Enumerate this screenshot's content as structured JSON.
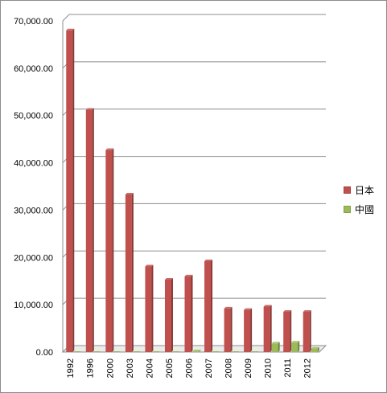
{
  "chart_data": {
    "type": "bar",
    "categories": [
      "1992",
      "1996",
      "2000",
      "2003",
      "2004",
      "2005",
      "2006",
      "2007",
      "2008",
      "2009",
      "2010",
      "2011",
      "2012"
    ],
    "series": [
      {
        "name": "日本",
        "color": "#c0504d",
        "values": [
          68000,
          51200,
          42700,
          33300,
          18100,
          15300,
          16000,
          19200,
          9200,
          8900,
          9600,
          8500,
          8500
        ]
      },
      {
        "name": "中國",
        "color": "#9bbb59",
        "values": [
          0,
          0,
          0,
          0,
          0,
          0,
          150,
          0,
          0,
          0,
          1800,
          2000,
          700
        ]
      }
    ],
    "yticks": [
      "0.00",
      "10,000.00",
      "20,000.00",
      "30,000.00",
      "40,000.00",
      "50,000.00",
      "60,000.00",
      "70,000.00"
    ],
    "ylim": [
      0,
      70000
    ],
    "grid": true,
    "legend_position": "right"
  }
}
